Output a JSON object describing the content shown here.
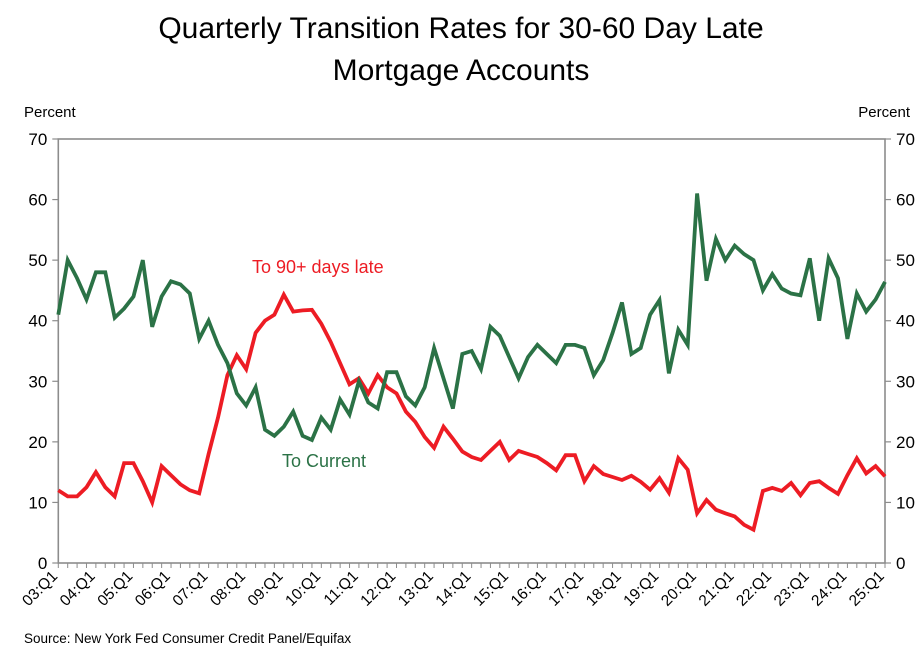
{
  "title": {
    "line1": "Quarterly Transition Rates for 30-60 Day Late",
    "line2": "Mortgage Accounts"
  },
  "source": "Source: New York Fed Consumer Credit Panel/Equifax",
  "colors": {
    "red": "#ed1c24",
    "green": "#2b7246",
    "axis": "#8c8c8c",
    "text": "#000000"
  },
  "chart_data": {
    "type": "line",
    "title": "Quarterly Transition Rates for 30-60 Day Late Mortgage Accounts",
    "ylabel_left": "Percent",
    "ylabel_right": "Percent",
    "ylim": [
      0,
      70
    ],
    "y_ticks": [
      0,
      10,
      20,
      30,
      40,
      50,
      60,
      70
    ],
    "grid": "off",
    "x_tick_labels": [
      "03:Q1",
      "04:Q1",
      "05:Q1",
      "06:Q1",
      "07:Q1",
      "08:Q1",
      "09:Q1",
      "10:Q1",
      "11:Q1",
      "12:Q1",
      "13:Q1",
      "14:Q1",
      "15:Q1",
      "16:Q1",
      "17:Q1",
      "18:Q1",
      "19:Q1",
      "20:Q1",
      "21:Q1",
      "22:Q1",
      "23:Q1",
      "24:Q1",
      "25:Q1"
    ],
    "quarters_per_x_tick": 4,
    "x_start": "2003:Q1",
    "x_end": "2025:Q1",
    "series": [
      {
        "name": "to-90-plus-days-late",
        "label": "To 90+ days late",
        "color_key": "red",
        "values": [
          12,
          11,
          11,
          12.5,
          15,
          12.5,
          11,
          16.5,
          16.5,
          13.5,
          10,
          16,
          14.5,
          13,
          12,
          11.5,
          18,
          24,
          31,
          34.3,
          32,
          38,
          40,
          41,
          44.3,
          41.5,
          41.7,
          41.8,
          39.5,
          36.5,
          33,
          29.5,
          30.5,
          28,
          31,
          29,
          28,
          25,
          23.3,
          20.8,
          19,
          22.5,
          20.5,
          18.4,
          17.5,
          17,
          18.5,
          20,
          17,
          18.5,
          18,
          17.5,
          16.5,
          15.3,
          17.8,
          17.8,
          13.5,
          16,
          14.7,
          14.2,
          13.7,
          14.4,
          13.4,
          12.1,
          14,
          11.6,
          17.3,
          15.4,
          8.2,
          10.4,
          8.8,
          8.2,
          7.7,
          6.3,
          5.5,
          11.9,
          12.4,
          11.9,
          13.2,
          11.2,
          13.2,
          13.5,
          12.4,
          11.4,
          14.5,
          17.3,
          14.8,
          16,
          14.3
        ]
      },
      {
        "name": "to-current",
        "label": "To Current",
        "color_key": "green",
        "values": [
          41,
          50,
          47,
          43.5,
          48,
          48,
          40.5,
          42,
          44,
          50,
          39,
          44,
          46.5,
          46,
          44.5,
          37,
          40,
          36,
          33,
          28,
          26,
          29,
          22,
          21,
          22.5,
          25,
          21,
          20.3,
          24,
          22,
          27,
          24.5,
          30,
          26.5,
          25.5,
          31.5,
          31.5,
          27.5,
          26,
          29,
          35.5,
          30.5,
          25.5,
          34.5,
          35,
          32,
          39,
          37.5,
          34,
          30.5,
          34,
          36,
          34.5,
          33,
          36,
          36,
          35.5,
          31,
          33.5,
          38,
          43,
          34.5,
          35.5,
          41,
          43.4,
          31.3,
          38.5,
          36,
          61,
          46.6,
          53.5,
          50,
          52.4,
          51,
          50,
          45,
          47.7,
          45.3,
          44.5,
          44.2,
          50.3,
          40,
          50.3,
          47,
          37,
          44.5,
          41.5,
          43.5,
          46.4
        ]
      }
    ]
  }
}
